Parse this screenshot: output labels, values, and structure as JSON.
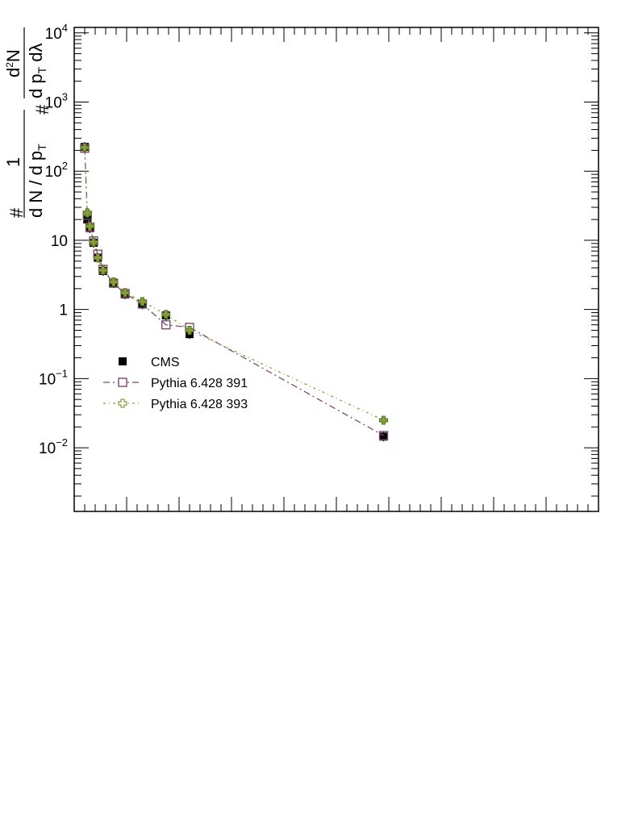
{
  "chart_data": {
    "type": "line",
    "title": "",
    "xlabel": "",
    "ylabel_parts": {
      "hash_left": "#",
      "numerator": "1",
      "denominator": "d N / d p",
      "denominator_sub": "T",
      "inner_hash": "#",
      "inner_num": "d",
      "inner_num_sup": "2",
      "inner_num_end": "N",
      "inner_den": "d p",
      "inner_den_sub": "T",
      "inner_den_end": " dλ"
    },
    "y_scale": "log",
    "ylim": [
      0.0012,
      12000
    ],
    "xlim": [
      0,
      1
    ],
    "ytick_labels": [
      {
        "value": 0.01,
        "base": "10",
        "exp": "−2"
      },
      {
        "value": 0.1,
        "base": "10",
        "exp": "−1"
      },
      {
        "value": 1,
        "base": "1",
        "exp": ""
      },
      {
        "value": 10,
        "base": "10",
        "exp": ""
      },
      {
        "value": 100,
        "base": "10",
        "exp": "2"
      },
      {
        "value": 1000,
        "base": "10",
        "exp": "3"
      },
      {
        "value": 10000,
        "base": "10",
        "exp": "4"
      }
    ],
    "grid": false,
    "legend_position": "middle-left",
    "series": [
      {
        "name": "CMS",
        "marker": "filled-square",
        "color": "#000000",
        "x": [
          0.02,
          0.025,
          0.03,
          0.037,
          0.045,
          0.055,
          0.075,
          0.097,
          0.13,
          0.175,
          0.22,
          0.59
        ],
        "y": [
          225,
          20,
          15,
          9.2,
          5.6,
          3.6,
          2.4,
          1.65,
          1.18,
          0.82,
          0.44,
          0.0145
        ]
      },
      {
        "name": "Pythia 6.428 391",
        "marker": "open-square",
        "color": "#7b4a6a",
        "x": [
          0.02,
          0.025,
          0.03,
          0.037,
          0.045,
          0.055,
          0.075,
          0.097,
          0.13,
          0.175,
          0.22,
          0.59
        ],
        "y": [
          215,
          23,
          15.5,
          9.8,
          6.3,
          3.8,
          2.4,
          1.7,
          1.2,
          0.6,
          0.55,
          0.015
        ]
      },
      {
        "name": "Pythia 6.428 393",
        "marker": "open-cross",
        "color": "#8f9a3c",
        "x": [
          0.02,
          0.025,
          0.03,
          0.037,
          0.045,
          0.055,
          0.075,
          0.097,
          0.13,
          0.175,
          0.22,
          0.59
        ],
        "y": [
          220,
          25,
          16,
          9.4,
          5.6,
          3.7,
          2.5,
          1.75,
          1.3,
          0.85,
          0.5,
          0.025
        ]
      }
    ]
  }
}
